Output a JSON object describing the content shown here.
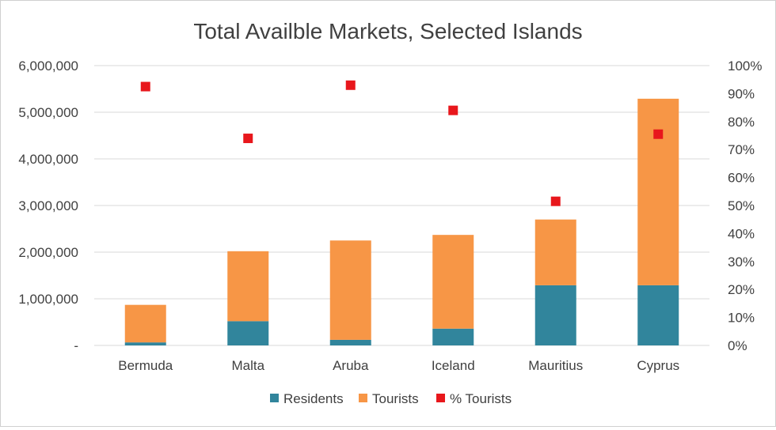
{
  "chart_data": {
    "type": "bar",
    "stacked": true,
    "title": "Total Availble Markets, Selected Islands",
    "categories": [
      "Bermuda",
      "Malta",
      "Aruba",
      "Iceland",
      "Mauritius",
      "Cyprus"
    ],
    "series": [
      {
        "name": "Residents",
        "type": "bar",
        "axis": "left",
        "color": "#31859c",
        "values": [
          65000,
          520000,
          120000,
          360000,
          1290000,
          1290000
        ]
      },
      {
        "name": "Tourists",
        "type": "bar",
        "axis": "left",
        "color": "#f79646",
        "values": [
          805000,
          1500000,
          2130000,
          2010000,
          1410000,
          4000000
        ]
      },
      {
        "name": "% Tourists",
        "type": "scatter",
        "axis": "right",
        "color": "#e8171c",
        "values": [
          92.5,
          74,
          93,
          84,
          51.5,
          75.5
        ]
      }
    ],
    "ylim": [
      0,
      6000000
    ],
    "y2lim": [
      0,
      100
    ],
    "y_ticks": [
      "-",
      "1,000,000",
      "2,000,000",
      "3,000,000",
      "4,000,000",
      "5,000,000",
      "6,000,000"
    ],
    "y2_ticks": [
      "0%",
      "10%",
      "20%",
      "30%",
      "40%",
      "50%",
      "60%",
      "70%",
      "80%",
      "90%",
      "100%"
    ],
    "legend": {
      "position": "bottom",
      "entries": [
        "Residents",
        "Tourists",
        "% Tourists"
      ]
    },
    "grid": true
  }
}
